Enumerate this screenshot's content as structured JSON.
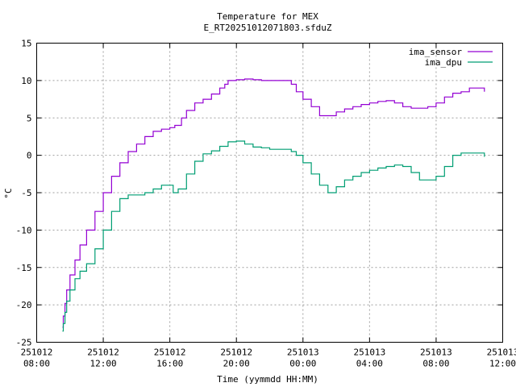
{
  "chart_data": {
    "type": "line",
    "title": "Temperature for MEX",
    "subtitle": "E_RT20251012071803.sfduZ",
    "xlabel": "Time (yymmdd HH:MM)",
    "ylabel": "°C",
    "xlim": [
      8,
      36
    ],
    "ylim": [
      -25,
      15
    ],
    "grid": true,
    "legend": "top-right",
    "x_unit": "hours since 251012 00:00",
    "xticks": [
      {
        "value": 8,
        "date": "251012",
        "time": "08:00"
      },
      {
        "value": 12,
        "date": "251012",
        "time": "12:00"
      },
      {
        "value": 16,
        "date": "251012",
        "time": "16:00"
      },
      {
        "value": 20,
        "date": "251012",
        "time": "20:00"
      },
      {
        "value": 24,
        "date": "251013",
        "time": "00:00"
      },
      {
        "value": 28,
        "date": "251013",
        "time": "04:00"
      },
      {
        "value": 32,
        "date": "251013",
        "time": "08:00"
      },
      {
        "value": 36,
        "date": "251013",
        "time": "12:00"
      }
    ],
    "yticks": [
      -25,
      -20,
      -15,
      -10,
      -5,
      0,
      5,
      10,
      15
    ],
    "series": [
      {
        "name": "ima_sensor",
        "color": "#9400d3",
        "x": [
          9.55,
          9.6,
          9.7,
          9.8,
          10.0,
          10.3,
          10.6,
          11.0,
          11.5,
          12.0,
          12.5,
          13.0,
          13.5,
          14.0,
          14.5,
          15.0,
          15.5,
          16.0,
          16.3,
          16.7,
          17.0,
          17.5,
          18.0,
          18.5,
          19.0,
          19.3,
          19.5,
          20.0,
          20.5,
          21.0,
          21.5,
          22.0,
          22.5,
          23.0,
          23.3,
          23.6,
          24.0,
          24.5,
          25.0,
          25.5,
          26.0,
          26.5,
          27.0,
          27.5,
          28.0,
          28.5,
          29.0,
          29.5,
          30.0,
          30.5,
          31.0,
          31.5,
          32.0,
          32.5,
          33.0,
          33.5,
          34.0,
          34.5,
          34.9
        ],
        "values": [
          -23.0,
          -21.5,
          -19.8,
          -18.0,
          -16.0,
          -14.0,
          -12.0,
          -10.0,
          -7.5,
          -5.0,
          -2.8,
          -1.0,
          0.5,
          1.5,
          2.5,
          3.2,
          3.5,
          3.7,
          4.0,
          5.0,
          6.0,
          7.0,
          7.5,
          8.2,
          9.0,
          9.5,
          10.0,
          10.1,
          10.2,
          10.1,
          10.0,
          10.0,
          10.0,
          10.0,
          9.5,
          8.5,
          7.5,
          6.5,
          5.3,
          5.3,
          5.8,
          6.2,
          6.5,
          6.8,
          7.0,
          7.2,
          7.3,
          7.0,
          6.5,
          6.3,
          6.3,
          6.5,
          7.0,
          7.8,
          8.3,
          8.5,
          9.0,
          9.0,
          8.5
        ]
      },
      {
        "name": "ima_dpu",
        "color": "#009e73",
        "x": [
          9.55,
          9.6,
          9.7,
          9.8,
          10.0,
          10.3,
          10.6,
          11.0,
          11.5,
          12.0,
          12.5,
          13.0,
          13.5,
          14.0,
          14.5,
          15.0,
          15.5,
          16.0,
          16.2,
          16.5,
          17.0,
          17.5,
          18.0,
          18.5,
          19.0,
          19.5,
          20.0,
          20.5,
          21.0,
          21.5,
          22.0,
          22.5,
          23.0,
          23.3,
          23.6,
          24.0,
          24.5,
          25.0,
          25.5,
          26.0,
          26.5,
          27.0,
          27.5,
          28.0,
          28.5,
          29.0,
          29.5,
          30.0,
          30.5,
          31.0,
          31.5,
          32.0,
          32.5,
          33.0,
          33.5,
          34.0,
          34.5,
          34.9
        ],
        "values": [
          -23.5,
          -22.5,
          -21.0,
          -19.5,
          -18.0,
          -16.5,
          -15.5,
          -14.5,
          -12.5,
          -10.0,
          -7.5,
          -5.8,
          -5.3,
          -5.3,
          -5.0,
          -4.5,
          -4.0,
          -4.0,
          -5.0,
          -4.5,
          -2.5,
          -0.8,
          0.2,
          0.6,
          1.2,
          1.8,
          1.9,
          1.5,
          1.1,
          1.0,
          0.8,
          0.8,
          0.8,
          0.5,
          0.0,
          -1.0,
          -2.5,
          -4.0,
          -5.0,
          -4.2,
          -3.3,
          -2.8,
          -2.3,
          -2.0,
          -1.7,
          -1.5,
          -1.3,
          -1.5,
          -2.3,
          -3.3,
          -3.3,
          -2.8,
          -1.5,
          0.0,
          0.3,
          0.3,
          0.3,
          -0.2
        ]
      }
    ]
  }
}
